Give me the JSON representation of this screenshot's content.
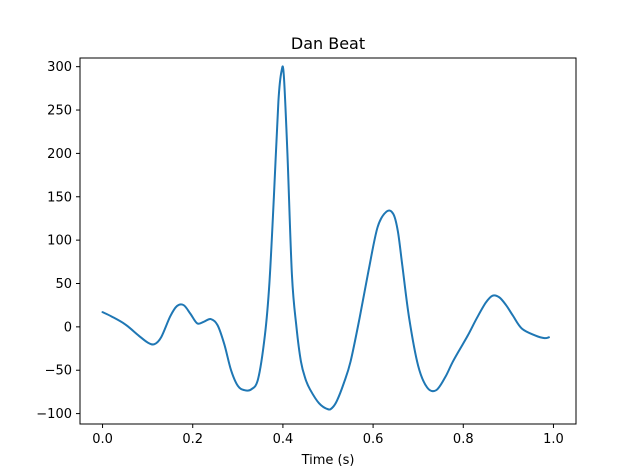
{
  "chart_data": {
    "type": "line",
    "title": "Dan Beat",
    "xlabel": "Time (s)",
    "ylabel": "",
    "xlim": [
      -0.05,
      1.05
    ],
    "ylim": [
      -112,
      310
    ],
    "xticks": [
      0.0,
      0.2,
      0.4,
      0.6,
      0.8,
      1.0
    ],
    "xtick_labels": [
      "0.0",
      "0.2",
      "0.4",
      "0.6",
      "0.8",
      "1.0"
    ],
    "yticks": [
      -100,
      -50,
      0,
      50,
      100,
      150,
      200,
      250,
      300
    ],
    "ytick_labels": [
      "−100",
      "−50",
      "0",
      "50",
      "100",
      "150",
      "200",
      "250",
      "300"
    ],
    "grid": false,
    "legend": "none",
    "series": [
      {
        "color": "#1f77b4",
        "x": [
          0.0,
          0.02,
          0.05,
          0.08,
          0.1,
          0.115,
          0.13,
          0.15,
          0.165,
          0.18,
          0.195,
          0.21,
          0.225,
          0.24,
          0.255,
          0.27,
          0.285,
          0.3,
          0.315,
          0.33,
          0.345,
          0.36,
          0.37,
          0.38,
          0.39,
          0.397,
          0.402,
          0.41,
          0.42,
          0.43,
          0.44,
          0.45,
          0.46,
          0.48,
          0.5,
          0.51,
          0.52,
          0.535,
          0.55,
          0.57,
          0.59,
          0.61,
          0.63,
          0.645,
          0.655,
          0.665,
          0.68,
          0.7,
          0.72,
          0.74,
          0.76,
          0.775,
          0.79,
          0.81,
          0.83,
          0.85,
          0.865,
          0.88,
          0.895,
          0.91,
          0.93,
          0.96,
          0.98,
          0.99
        ],
        "y": [
          17,
          12,
          3,
          -10,
          -18,
          -20,
          -12,
          12,
          24,
          25,
          15,
          4,
          6,
          9,
          2,
          -20,
          -50,
          -68,
          -73,
          -72,
          -60,
          -10,
          50,
          150,
          260,
          295,
          290,
          200,
          60,
          0,
          -40,
          -60,
          -72,
          -88,
          -95,
          -93,
          -85,
          -65,
          -40,
          10,
          65,
          115,
          133,
          130,
          110,
          70,
          10,
          -45,
          -70,
          -73,
          -58,
          -42,
          -28,
          -10,
          10,
          28,
          36,
          34,
          25,
          13,
          -2,
          -10,
          -13,
          -12
        ]
      }
    ]
  }
}
